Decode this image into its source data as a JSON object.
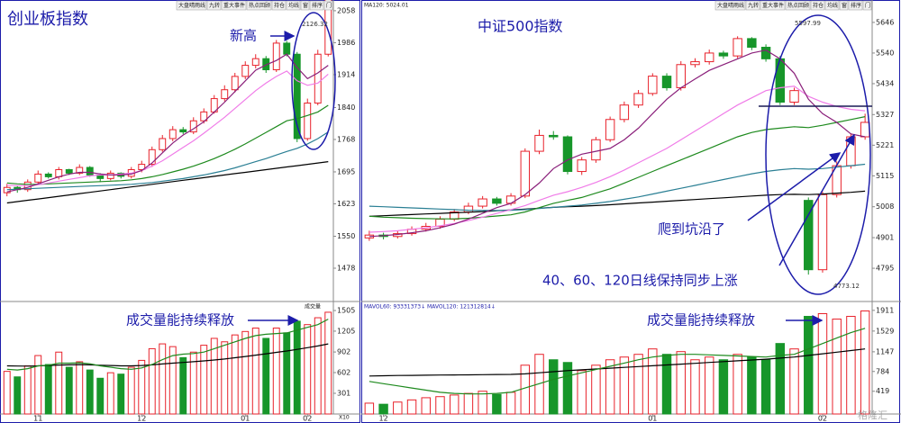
{
  "watermark": "格隆汇",
  "chart_data": [
    {
      "type": "candlestick",
      "title": "创业板指数",
      "annotations": [
        "新高"
      ],
      "toolbar": [
        "大盘晴雨线",
        "九转",
        "重大事件",
        "热点回顾",
        "持仓",
        "均线",
        "窗",
        "排序",
        "门"
      ],
      "up_color": "#e8222b",
      "down_color": "#17962a",
      "open": [
        1648,
        1660,
        1655,
        1672,
        1690,
        1684,
        1700,
        1692,
        1705,
        1688,
        1680,
        1692,
        1685,
        1700,
        1712,
        1745,
        1770,
        1790,
        1785,
        1810,
        1830,
        1860,
        1880,
        1910,
        1935,
        1950,
        1925,
        1985,
        1960,
        1770,
        1850,
        1960
      ],
      "high": [
        1668,
        1664,
        1678,
        1698,
        1694,
        1706,
        1702,
        1712,
        1708,
        1692,
        1698,
        1694,
        1706,
        1720,
        1752,
        1778,
        1798,
        1796,
        1818,
        1838,
        1868,
        1890,
        1918,
        1944,
        1960,
        1956,
        1992,
        1990,
        1965,
        1860,
        1970,
        2126.32
      ],
      "low": [
        1640,
        1648,
        1650,
        1668,
        1680,
        1678,
        1688,
        1688,
        1684,
        1672,
        1676,
        1680,
        1680,
        1694,
        1706,
        1740,
        1764,
        1780,
        1780,
        1804,
        1826,
        1854,
        1874,
        1904,
        1928,
        1918,
        1920,
        1955,
        1762,
        1765,
        1845,
        1955
      ],
      "close": [
        1660,
        1655,
        1672,
        1690,
        1684,
        1700,
        1692,
        1705,
        1688,
        1680,
        1692,
        1685,
        1700,
        1712,
        1745,
        1770,
        1790,
        1785,
        1810,
        1830,
        1860,
        1880,
        1910,
        1935,
        1950,
        1925,
        1985,
        1960,
        1770,
        1850,
        1960,
        2105
      ],
      "series": [
        {
          "color": "#000000",
          "values": [
            1625,
            1628,
            1631,
            1634,
            1637,
            1640,
            1643,
            1646,
            1649,
            1652,
            1655,
            1658,
            1661,
            1664,
            1667,
            1670,
            1673,
            1676,
            1679,
            1682,
            1685,
            1688,
            1691,
            1694,
            1697,
            1700,
            1703,
            1706,
            1709,
            1712,
            1715,
            1718
          ]
        },
        {
          "color": "#2a7f94",
          "values": [
            1655,
            1656,
            1657,
            1658,
            1659,
            1660,
            1661,
            1662,
            1663,
            1664,
            1665,
            1666,
            1667,
            1669,
            1671,
            1674,
            1677,
            1680,
            1684,
            1688,
            1693,
            1698,
            1704,
            1711,
            1718,
            1725,
            1733,
            1741,
            1748,
            1758,
            1770,
            1785
          ]
        },
        {
          "color": "#1e8a1e",
          "values": [
            1670,
            1668,
            1667,
            1667,
            1668,
            1669,
            1670,
            1671,
            1672,
            1673,
            1674,
            1675,
            1677,
            1680,
            1684,
            1689,
            1695,
            1701,
            1708,
            1716,
            1725,
            1735,
            1746,
            1758,
            1771,
            1784,
            1797,
            1810,
            1815,
            1822,
            1830,
            1845
          ]
        },
        {
          "color": "#f07ce8",
          "values": [
            1665,
            1664,
            1664,
            1666,
            1670,
            1674,
            1678,
            1682,
            1686,
            1688,
            1688,
            1690,
            1692,
            1698,
            1708,
            1720,
            1735,
            1750,
            1765,
            1782,
            1800,
            1818,
            1838,
            1858,
            1878,
            1895,
            1910,
            1922,
            1900,
            1890,
            1895,
            1915
          ]
        },
        {
          "color": "#8a1f7a",
          "values": [
            1650,
            1655,
            1660,
            1668,
            1676,
            1684,
            1690,
            1694,
            1694,
            1690,
            1688,
            1688,
            1690,
            1698,
            1715,
            1738,
            1760,
            1778,
            1792,
            1808,
            1830,
            1852,
            1876,
            1900,
            1924,
            1936,
            1946,
            1960,
            1930,
            1905,
            1918,
            1935
          ]
        }
      ],
      "ylim": [
        1403,
        2072
      ],
      "yticks": [
        1478,
        1550,
        1623,
        1695,
        1768,
        1840,
        1914,
        1986,
        2058
      ]
    },
    {
      "type": "bar",
      "header": "成交量",
      "annotation": "成交量能持续释放",
      "unit": "X10",
      "categories": [
        null,
        null,
        null,
        "11",
        null,
        null,
        null,
        null,
        null,
        null,
        null,
        null,
        null,
        "12",
        null,
        null,
        null,
        null,
        null,
        null,
        null,
        null,
        null,
        "01",
        null,
        null,
        null,
        null,
        null,
        "02",
        null,
        null
      ],
      "values": [
        620,
        540,
        700,
        850,
        720,
        900,
        680,
        760,
        640,
        520,
        600,
        580,
        680,
        780,
        950,
        1020,
        980,
        820,
        900,
        1000,
        1100,
        1050,
        1150,
        1200,
        1250,
        1100,
        1250,
        1180,
        1350,
        1300,
        1400,
        1480
      ],
      "series": [
        {
          "color": "#000000",
          "values": [
            700,
            698,
            696,
            700,
            705,
            712,
            715,
            718,
            715,
            710,
            705,
            700,
            700,
            705,
            715,
            728,
            740,
            750,
            760,
            772,
            785,
            800,
            818,
            836,
            856,
            876,
            896,
            916,
            940,
            965,
            990,
            1020
          ]
        },
        {
          "color": "#1e8a1e",
          "values": [
            650,
            640,
            660,
            700,
            710,
            740,
            740,
            745,
            730,
            700,
            680,
            660,
            650,
            670,
            720,
            790,
            850,
            870,
            880,
            900,
            950,
            1000,
            1050,
            1100,
            1140,
            1160,
            1170,
            1180,
            1220,
            1260,
            1300,
            1380
          ]
        }
      ],
      "ylim": [
        0,
        1610
      ],
      "yticks": [
        301,
        602,
        902,
        1205,
        1505
      ]
    },
    {
      "type": "candlestick",
      "title": "中证500指数",
      "header": "MA120: 5024.01",
      "annotations": [
        "爬到坑沿了",
        "40、60、120日线保持同步上涨"
      ],
      "toolbar": [
        "大盘晴雨线",
        "九转",
        "重大事件",
        "热点回顾",
        "持仓",
        "均线",
        "窗",
        "排序",
        "门"
      ],
      "up_color": "#e8222b",
      "down_color": "#17962a",
      "open": [
        4900,
        4910,
        4905,
        4915,
        4930,
        4940,
        4965,
        4990,
        5010,
        5035,
        5020,
        5045,
        5200,
        5255,
        5250,
        5130,
        5170,
        5240,
        5310,
        5360,
        5400,
        5460,
        5420,
        5500,
        5510,
        5540,
        5530,
        5590,
        5560,
        5520,
        5370,
        5030,
        4790,
        5050,
        5150,
        5250
      ],
      "high": [
        4925,
        4918,
        4925,
        4940,
        4952,
        4975,
        5000,
        5022,
        5045,
        5042,
        5055,
        5210,
        5275,
        5270,
        5255,
        5180,
        5250,
        5320,
        5372,
        5412,
        5470,
        5470,
        5512,
        5522,
        5552,
        5548,
        5597.99,
        5595,
        5570,
        5530,
        5420,
        5040,
        5060,
        5165,
        5262,
        5330
      ],
      "low": [
        4890,
        4895,
        4898,
        4908,
        4922,
        4932,
        4958,
        4982,
        5002,
        5012,
        5012,
        5038,
        5190,
        5240,
        5120,
        5118,
        5160,
        5232,
        5300,
        5350,
        5392,
        5410,
        5410,
        5490,
        5500,
        5520,
        5522,
        5550,
        5510,
        5360,
        5360,
        4773.12,
        4780,
        5040,
        5140,
        5240
      ],
      "close": [
        4910,
        4905,
        4915,
        4930,
        4940,
        4965,
        4990,
        5010,
        5035,
        5020,
        5045,
        5200,
        5255,
        5250,
        5130,
        5170,
        5240,
        5310,
        5360,
        5400,
        5460,
        5420,
        5500,
        5510,
        5540,
        5530,
        5590,
        5560,
        5520,
        5370,
        5410,
        4790,
        5050,
        5150,
        5250,
        5300
      ],
      "series": [
        {
          "color": "#000000",
          "values": [
            4975,
            4977,
            4979,
            4981,
            4983,
            4985,
            4987,
            4989,
            4991,
            4994,
            4997,
            5000,
            5003,
            5006,
            5008,
            5010,
            5012,
            5015,
            5018,
            5021,
            5024,
            5027,
            5030,
            5033,
            5036,
            5039,
            5042,
            5045,
            5048,
            5050,
            5051,
            5050,
            5052,
            5055,
            5058,
            5062
          ]
        },
        {
          "color": "#2a7f94",
          "values": [
            5010,
            5008,
            5006,
            5004,
            5002,
            5000,
            4998,
            4996,
            4995,
            4995,
            4996,
            4998,
            5002,
            5006,
            5010,
            5014,
            5020,
            5026,
            5034,
            5042,
            5052,
            5062,
            5072,
            5082,
            5092,
            5102,
            5112,
            5122,
            5130,
            5136,
            5140,
            5138,
            5140,
            5145,
            5150,
            5155
          ]
        },
        {
          "color": "#1e8a1e",
          "values": [
            4975,
            4972,
            4970,
            4968,
            4967,
            4966,
            4966,
            4968,
            4972,
            4976,
            4980,
            4990,
            5005,
            5020,
            5030,
            5040,
            5055,
            5070,
            5090,
            5110,
            5130,
            5150,
            5170,
            5190,
            5210,
            5230,
            5250,
            5265,
            5275,
            5280,
            5285,
            5282,
            5290,
            5300,
            5310,
            5320
          ]
        },
        {
          "color": "#f07ce8",
          "values": [
            4920,
            4922,
            4925,
            4930,
            4935,
            4942,
            4950,
            4960,
            4972,
            4985,
            4998,
            5012,
            5030,
            5048,
            5060,
            5075,
            5092,
            5112,
            5135,
            5160,
            5185,
            5210,
            5240,
            5270,
            5300,
            5330,
            5360,
            5385,
            5410,
            5420,
            5425,
            5390,
            5370,
            5355,
            5345,
            5340
          ]
        },
        {
          "color": "#8a1f7a",
          "values": [
            4905,
            4908,
            4912,
            4918,
            4925,
            4935,
            4948,
            4965,
            4985,
            5005,
            5020,
            5050,
            5090,
            5140,
            5170,
            5190,
            5200,
            5210,
            5240,
            5280,
            5330,
            5380,
            5420,
            5450,
            5480,
            5500,
            5520,
            5540,
            5550,
            5520,
            5470,
            5380,
            5330,
            5300,
            5260,
            5250
          ]
        }
      ],
      "ylim": [
        4680,
        5708
      ],
      "yticks": [
        4795,
        4901,
        5008,
        5115,
        5221,
        5327,
        5434,
        5540,
        5646
      ]
    },
    {
      "type": "bar",
      "header": "MAVOL60: 93331373↓  MAVOL120: 121312814↓",
      "annotation": "成交量能持续释放",
      "categories": [
        null,
        "12",
        null,
        null,
        null,
        null,
        null,
        null,
        null,
        null,
        null,
        null,
        null,
        null,
        null,
        null,
        null,
        null,
        null,
        null,
        "01",
        null,
        null,
        null,
        null,
        null,
        null,
        null,
        null,
        null,
        null,
        null,
        "02",
        null,
        null,
        null
      ],
      "values": [
        200,
        180,
        220,
        260,
        300,
        320,
        350,
        380,
        420,
        360,
        400,
        900,
        1100,
        1000,
        950,
        800,
        900,
        1000,
        1050,
        1100,
        1200,
        1100,
        1150,
        1000,
        1050,
        1000,
        1100,
        1050,
        1000,
        1300,
        1200,
        1800,
        1850,
        1750,
        1800,
        1900
      ],
      "series": [
        {
          "color": "#000000",
          "values": [
            700,
            705,
            710,
            712,
            715,
            718,
            720,
            722,
            725,
            728,
            730,
            740,
            760,
            780,
            800,
            815,
            830,
            845,
            860,
            875,
            890,
            905,
            920,
            935,
            950,
            965,
            980,
            995,
            1010,
            1030,
            1050,
            1080,
            1110,
            1140,
            1170,
            1200
          ]
        },
        {
          "color": "#1e8a1e",
          "values": [
            600,
            560,
            520,
            480,
            440,
            400,
            380,
            370,
            370,
            380,
            400,
            480,
            560,
            640,
            700,
            760,
            820,
            880,
            940,
            1000,
            1050,
            1080,
            1100,
            1100,
            1090,
            1080,
            1070,
            1060,
            1050,
            1080,
            1100,
            1200,
            1300,
            1400,
            1500,
            1580
          ]
        }
      ],
      "ylim": [
        0,
        2041
      ],
      "yticks": [
        419,
        784,
        1147,
        1529,
        1911
      ]
    }
  ]
}
